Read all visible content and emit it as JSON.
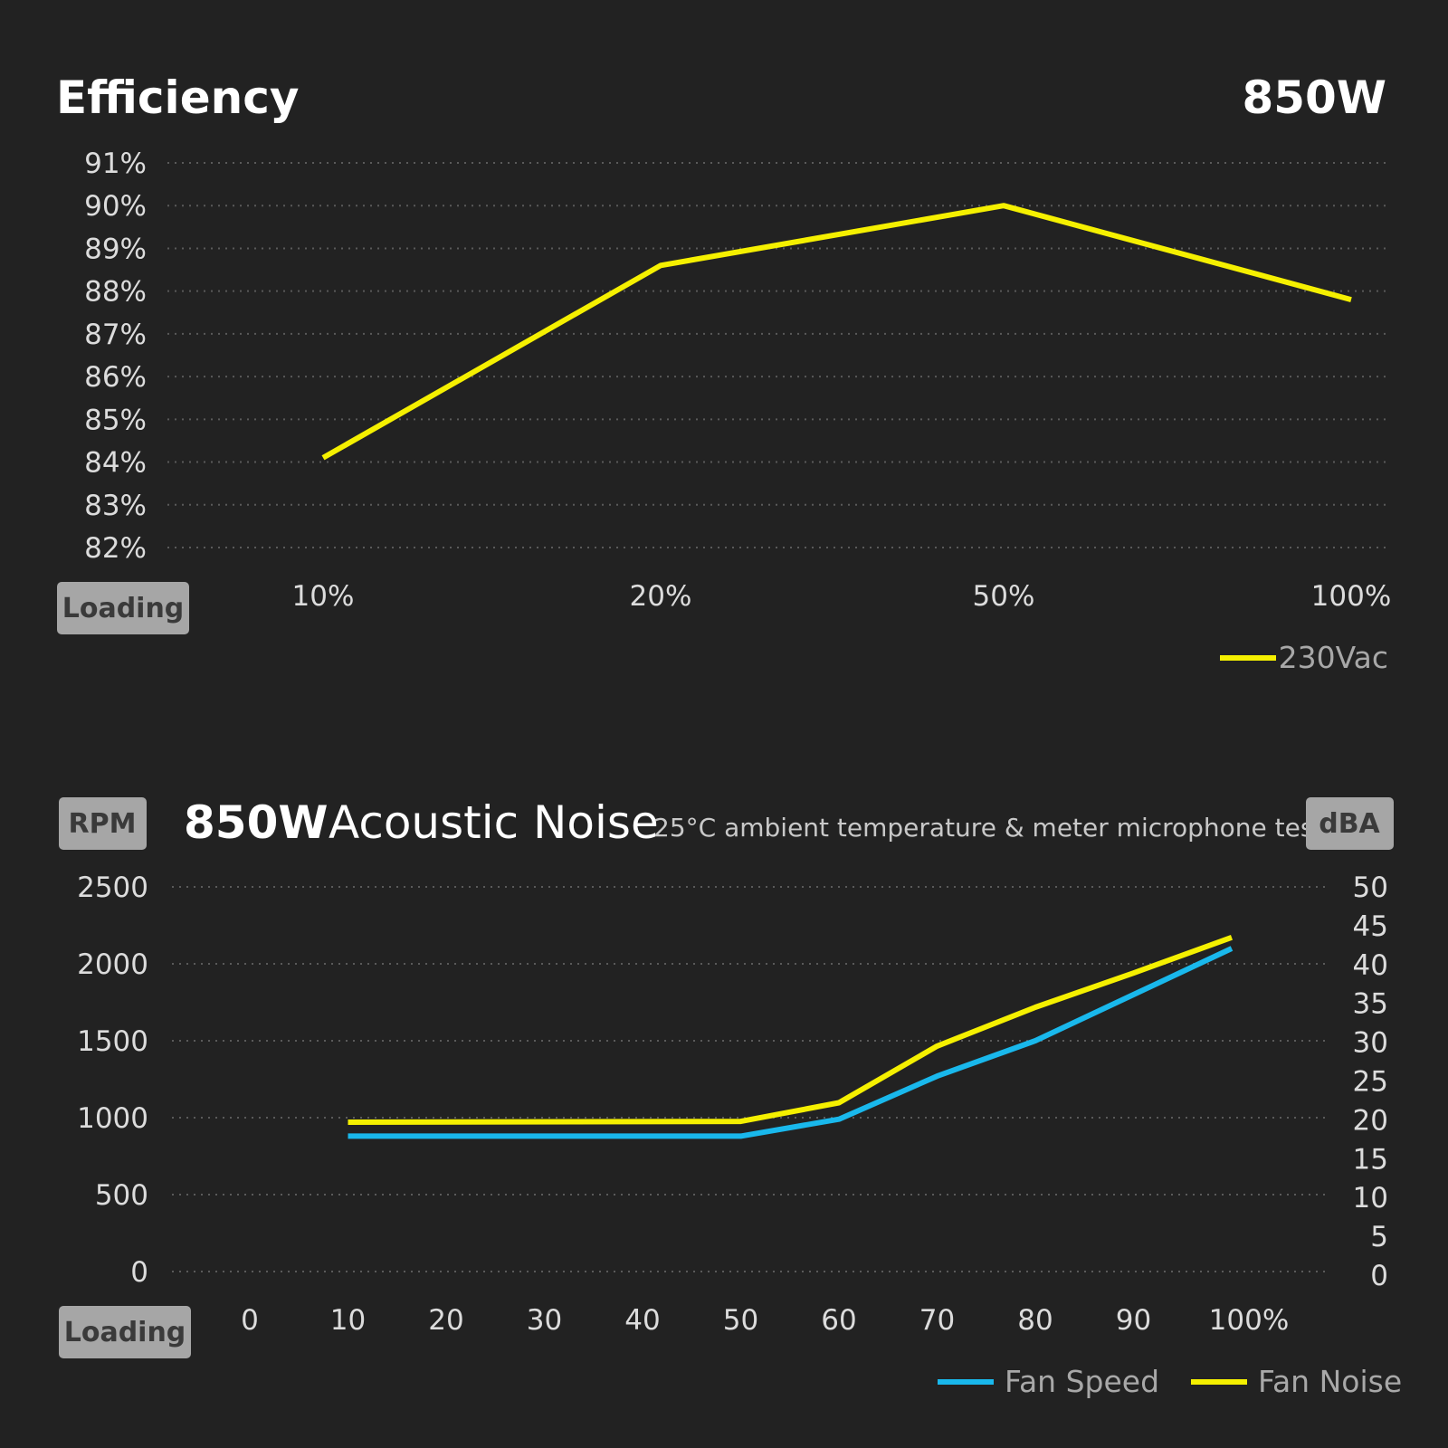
{
  "colors": {
    "background": "#222222",
    "yellow": "#f5f000",
    "cyan": "#19b8ec",
    "badge": "#a6a6a6"
  },
  "chart_data": [
    {
      "type": "line",
      "title": "Efficiency",
      "title_right": "850W",
      "badge": "Loading",
      "categories": [
        "10%",
        "20%",
        "50%",
        "100%"
      ],
      "y_ticks": [
        "91%",
        "90%",
        "89%",
        "88%",
        "87%",
        "86%",
        "85%",
        "84%",
        "83%",
        "82%"
      ],
      "ylim": [
        82,
        91
      ],
      "grid": true,
      "legend_position": "bottom-right",
      "series": [
        {
          "name": "230Vac",
          "color": "#f5f000",
          "values": [
            84.1,
            88.6,
            90.0,
            87.8
          ]
        }
      ]
    },
    {
      "type": "line",
      "title_bold": "850W",
      "title": "Acoustic Noise",
      "subtitle": "25°C ambient temperature & meter microphone test",
      "left_axis_badge": "RPM",
      "right_axis_badge": "dBA",
      "badge": "Loading",
      "x_ticks": [
        "0",
        "10",
        "20",
        "30",
        "40",
        "50",
        "60",
        "70",
        "80",
        "90",
        "100%"
      ],
      "y_left_ticks": [
        "2500",
        "2000",
        "1500",
        "1000",
        "500",
        "0"
      ],
      "y_left_lim": [
        0,
        2500
      ],
      "y_right_ticks": [
        "50",
        "45",
        "40",
        "35",
        "30",
        "25",
        "20",
        "15",
        "10",
        "5",
        "0"
      ],
      "y_right_lim": [
        0,
        50
      ],
      "grid": true,
      "legend_position": "bottom-right",
      "series": [
        {
          "name": "Fan Speed",
          "axis": "left",
          "color": "#19b8ec",
          "x": [
            10,
            50,
            60,
            70,
            80,
            90,
            100
          ],
          "values": [
            880,
            880,
            990,
            1270,
            1500,
            1800,
            2100
          ]
        },
        {
          "name": "Fan Noise",
          "axis": "right",
          "color": "#f5f000",
          "x": [
            10,
            50,
            60,
            70,
            80,
            90,
            100
          ],
          "values": [
            19.7,
            19.8,
            22.2,
            29.5,
            34.5,
            38.9,
            43.5
          ]
        }
      ]
    }
  ]
}
